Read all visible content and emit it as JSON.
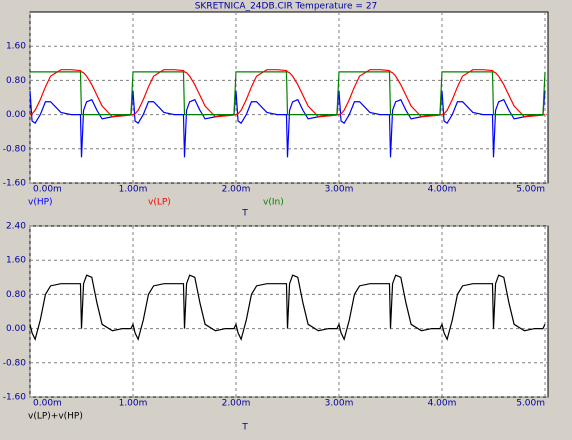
{
  "chart_data": [
    {
      "type": "line",
      "title": "SKRETNICA_24DB.CIR Temperature = 27",
      "xlabel": "T",
      "grid": true,
      "xlim": [
        0,
        0.005
      ],
      "ylim": [
        -1.6,
        2.4
      ],
      "xticks": [
        {
          "value": 0,
          "label": "0.00m"
        },
        {
          "value": 0.001,
          "label": "1.00m"
        },
        {
          "value": 0.002,
          "label": "2.00m"
        },
        {
          "value": 0.003,
          "label": "3.00m"
        },
        {
          "value": 0.004,
          "label": "4.00m"
        },
        {
          "value": 0.005,
          "label": "5.00m"
        }
      ],
      "yticks": [
        {
          "value": -1.6,
          "label": "-1.60"
        },
        {
          "value": -0.8,
          "label": "-0.80"
        },
        {
          "value": 0,
          "label": "0.00"
        },
        {
          "value": 0.8,
          "label": "0.80"
        },
        {
          "value": 1.6,
          "label": "1.60"
        }
      ],
      "x": [
        0,
        2e-05,
        5e-05,
        0.0001,
        0.00015,
        0.0002,
        0.0003,
        0.0004,
        0.00049,
        0.0005,
        0.00052,
        0.00055,
        0.0006,
        0.00065,
        0.0007,
        0.0008,
        0.0009,
        0.00098,
        0.001,
        0.00102,
        0.00105,
        0.0011,
        0.00115,
        0.0012,
        0.0013,
        0.0014,
        0.00149,
        0.0015,
        0.00152,
        0.00155,
        0.0016,
        0.00165,
        0.0017,
        0.0018,
        0.0019,
        0.00198,
        0.002,
        0.00202,
        0.00205,
        0.0021,
        0.00215,
        0.0022,
        0.0023,
        0.0024,
        0.00249,
        0.0025,
        0.00252,
        0.00255,
        0.0026,
        0.00265,
        0.0027,
        0.0028,
        0.0029,
        0.00298,
        0.003,
        0.00302,
        0.00305,
        0.0031,
        0.00315,
        0.0032,
        0.0033,
        0.0034,
        0.00349,
        0.0035,
        0.00352,
        0.00355,
        0.0036,
        0.00365,
        0.0037,
        0.0038,
        0.0039,
        0.00398,
        0.004,
        0.00402,
        0.00405,
        0.0041,
        0.00415,
        0.0042,
        0.0043,
        0.0044,
        0.00449,
        0.0045,
        0.00452,
        0.00455,
        0.0046,
        0.00465,
        0.0047,
        0.0048,
        0.0049,
        0.00498,
        0.005
      ],
      "series": [
        {
          "name": "v(HP)",
          "color": "#0000ff",
          "values": [
            0.55,
            -0.15,
            -0.2,
            0,
            0.3,
            0.3,
            0.05,
            0,
            0,
            -1,
            0.1,
            0.3,
            0.35,
            0.1,
            -0.1,
            -0.05,
            0,
            0,
            0.55,
            -0.15,
            -0.2,
            0,
            0.3,
            0.3,
            0.05,
            0,
            0,
            -1,
            0.1,
            0.3,
            0.35,
            0.1,
            -0.1,
            -0.05,
            0,
            0,
            0.55,
            -0.15,
            -0.2,
            0,
            0.3,
            0.3,
            0.05,
            0,
            0,
            -1,
            0.1,
            0.3,
            0.35,
            0.1,
            -0.1,
            -0.05,
            0,
            0,
            0.55,
            -0.15,
            -0.2,
            0,
            0.3,
            0.3,
            0.05,
            0,
            0,
            -1,
            0.1,
            0.3,
            0.35,
            0.1,
            -0.1,
            -0.05,
            0,
            0,
            0.55,
            -0.15,
            -0.2,
            0,
            0.3,
            0.3,
            0.05,
            0,
            0,
            -1,
            0.1,
            0.3,
            0.35,
            0.1,
            -0.1,
            -0.05,
            0,
            0,
            0.55
          ]
        },
        {
          "name": "v(LP)",
          "color": "#ff0000",
          "values": [
            0,
            0.02,
            0.1,
            0.35,
            0.65,
            0.9,
            1.05,
            1.05,
            1.03,
            1,
            0.98,
            0.9,
            0.7,
            0.45,
            0.2,
            -0.05,
            -0.03,
            -0.01,
            0,
            0.02,
            0.1,
            0.35,
            0.65,
            0.9,
            1.05,
            1.05,
            1.03,
            1,
            0.98,
            0.9,
            0.7,
            0.45,
            0.2,
            -0.05,
            -0.03,
            -0.01,
            0,
            0.02,
            0.1,
            0.35,
            0.65,
            0.9,
            1.05,
            1.05,
            1.03,
            1,
            0.98,
            0.9,
            0.7,
            0.45,
            0.2,
            -0.05,
            -0.03,
            -0.01,
            0,
            0.02,
            0.1,
            0.35,
            0.65,
            0.9,
            1.05,
            1.05,
            1.03,
            1,
            0.98,
            0.9,
            0.7,
            0.45,
            0.2,
            -0.05,
            -0.03,
            -0.01,
            0,
            0.02,
            0.1,
            0.35,
            0.65,
            0.9,
            1.05,
            1.05,
            1.03,
            1,
            0.98,
            0.9,
            0.7,
            0.45,
            0.2,
            -0.05,
            -0.03,
            -0.01,
            0
          ]
        },
        {
          "name": "v(In)",
          "color": "#008000",
          "values": [
            1,
            1,
            1,
            1,
            1,
            1,
            1,
            1,
            1,
            0,
            0,
            0,
            0,
            0,
            0,
            0,
            0,
            0,
            1,
            1,
            1,
            1,
            1,
            1,
            1,
            1,
            1,
            0,
            0,
            0,
            0,
            0,
            0,
            0,
            0,
            0,
            1,
            1,
            1,
            1,
            1,
            1,
            1,
            1,
            1,
            0,
            0,
            0,
            0,
            0,
            0,
            0,
            0,
            0,
            1,
            1,
            1,
            1,
            1,
            1,
            1,
            1,
            1,
            0,
            0,
            0,
            0,
            0,
            0,
            0,
            0,
            0,
            1,
            1,
            1,
            1,
            1,
            1,
            1,
            1,
            1,
            0,
            0,
            0,
            0,
            0,
            0,
            0,
            0,
            0,
            1
          ]
        }
      ]
    },
    {
      "type": "line",
      "xlabel": "T",
      "grid": true,
      "xlim": [
        0,
        0.005
      ],
      "ylim": [
        -1.6,
        2.4
      ],
      "xticks": [
        {
          "value": 0,
          "label": "0.00m"
        },
        {
          "value": 0.001,
          "label": "1.00m"
        },
        {
          "value": 0.002,
          "label": "2.00m"
        },
        {
          "value": 0.003,
          "label": "3.00m"
        },
        {
          "value": 0.004,
          "label": "4.00m"
        },
        {
          "value": 0.005,
          "label": "5.00m"
        }
      ],
      "yticks": [
        {
          "value": -1.6,
          "label": "-1.60"
        },
        {
          "value": -0.8,
          "label": "-0.80"
        },
        {
          "value": 0,
          "label": "0.00"
        },
        {
          "value": 0.8,
          "label": "0.80"
        },
        {
          "value": 1.6,
          "label": "1.60"
        },
        {
          "value": 2.4,
          "label": "2.40"
        }
      ],
      "x": [
        0,
        2e-05,
        5e-05,
        0.0001,
        0.00015,
        0.0002,
        0.0003,
        0.0004,
        0.00049,
        0.0005,
        0.00052,
        0.00055,
        0.0006,
        0.00065,
        0.0007,
        0.0008,
        0.0009,
        0.00098,
        0.001,
        0.00102,
        0.00105,
        0.0011,
        0.00115,
        0.0012,
        0.0013,
        0.0014,
        0.00149,
        0.0015,
        0.00152,
        0.00155,
        0.0016,
        0.00165,
        0.0017,
        0.0018,
        0.0019,
        0.00198,
        0.002,
        0.00202,
        0.00205,
        0.0021,
        0.00215,
        0.0022,
        0.0023,
        0.0024,
        0.00249,
        0.0025,
        0.00252,
        0.00255,
        0.0026,
        0.00265,
        0.0027,
        0.0028,
        0.0029,
        0.00298,
        0.003,
        0.00302,
        0.00305,
        0.0031,
        0.00315,
        0.0032,
        0.0033,
        0.0034,
        0.00349,
        0.0035,
        0.00352,
        0.00355,
        0.0036,
        0.00365,
        0.0037,
        0.0038,
        0.0039,
        0.00398,
        0.004,
        0.00402,
        0.00405,
        0.0041,
        0.00415,
        0.0042,
        0.0043,
        0.0044,
        0.00449,
        0.0045,
        0.00452,
        0.00455,
        0.0046,
        0.00465,
        0.0047,
        0.0048,
        0.0049,
        0.00498,
        0.005
      ],
      "series": [
        {
          "name": "v(LP)+v(HP)",
          "color": "#000000",
          "values": [
            0.1,
            -0.1,
            -0.25,
            0.2,
            0.8,
            1,
            1.05,
            1.05,
            1.05,
            0,
            1.05,
            1.25,
            1.2,
            0.6,
            0.1,
            -0.05,
            0,
            0,
            0.1,
            -0.1,
            -0.25,
            0.2,
            0.8,
            1,
            1.05,
            1.05,
            1.05,
            0,
            1.05,
            1.25,
            1.2,
            0.6,
            0.1,
            -0.05,
            0,
            0,
            0.1,
            -0.1,
            -0.25,
            0.2,
            0.8,
            1,
            1.05,
            1.05,
            1.05,
            0,
            1.05,
            1.25,
            1.2,
            0.6,
            0.1,
            -0.05,
            0,
            0,
            0.1,
            -0.1,
            -0.25,
            0.2,
            0.8,
            1,
            1.05,
            1.05,
            1.05,
            0,
            1.05,
            1.25,
            1.2,
            0.6,
            0.1,
            -0.05,
            0,
            0,
            0.1,
            -0.1,
            -0.25,
            0.2,
            0.8,
            1,
            1.05,
            1.05,
            1.05,
            0,
            1.05,
            1.25,
            1.2,
            0.6,
            0.1,
            -0.05,
            0,
            0,
            0.1
          ]
        }
      ]
    }
  ]
}
